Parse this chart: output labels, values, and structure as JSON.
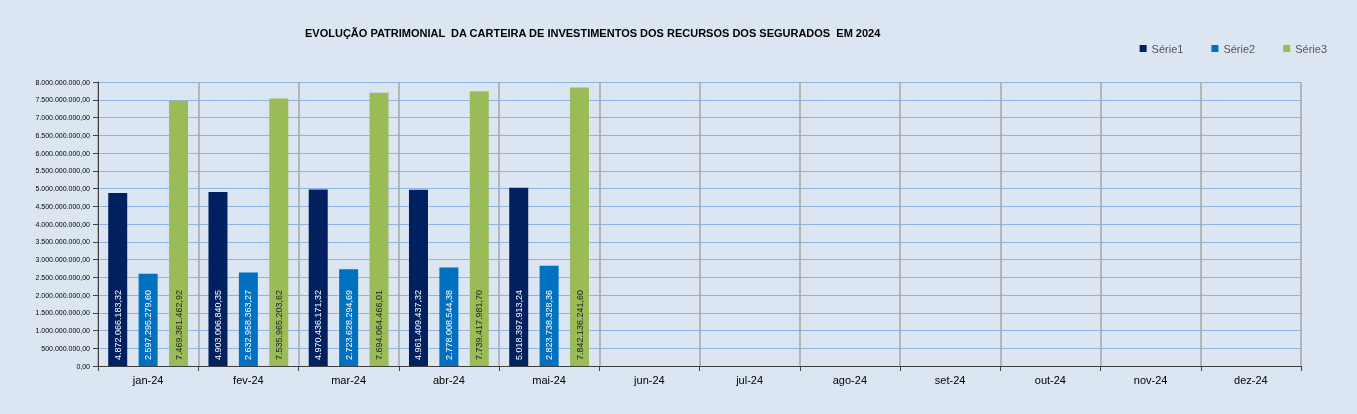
{
  "chart_data": {
    "type": "bar",
    "title": "EVOLUÇÃO PATRIMONIAL  DA CARTEIRA DE INVESTIMENTOS DOS RECURSOS DOS SEGURADOS  EM 2024",
    "categories": [
      "jan-24",
      "fev-24",
      "mar-24",
      "abr-24",
      "mai-24",
      "jun-24",
      "jul-24",
      "ago-24",
      "set-24",
      "out-24",
      "nov-24",
      "dez-24"
    ],
    "series": [
      {
        "name": "Série1",
        "color": "#002060",
        "values": [
          4872066183.32,
          4903006840.35,
          4970436171.32,
          4961409437.32,
          5018397913.24,
          null,
          null,
          null,
          null,
          null,
          null,
          null
        ],
        "value_labels": [
          "4.872.066.183,32",
          "4.903.006.840,35",
          "4.970.436.171,32",
          "4.961.409.437,32",
          "5.018.397.913,24",
          null,
          null,
          null,
          null,
          null,
          null,
          null
        ]
      },
      {
        "name": "Série2",
        "color": "#0070c0",
        "values": [
          2597295279.6,
          2632958363.27,
          2723628294.69,
          2778008544.38,
          2823738328.36,
          null,
          null,
          null,
          null,
          null,
          null,
          null
        ],
        "value_labels": [
          "2.597.295.279,60",
          "2.632.958.363,27",
          "2.723.628.294,69",
          "2.778.008.544,38",
          "2.823.738.328,36",
          null,
          null,
          null,
          null,
          null,
          null,
          null
        ]
      },
      {
        "name": "Série3",
        "color": "#9bbb59",
        "values": [
          7469361462.92,
          7535965203.62,
          7694064466.01,
          7739417981.7,
          7842136241.6,
          null,
          null,
          null,
          null,
          null,
          null,
          null
        ],
        "value_labels": [
          "7.469.361.462,92",
          "7.535.965.203,62",
          "7.694.064.466,01",
          "7.739.417.981,70",
          "7.842.136.241,60",
          null,
          null,
          null,
          null,
          null,
          null,
          null
        ]
      }
    ],
    "ylim": [
      0,
      8000000000
    ],
    "yticks": [
      {
        "value": 0,
        "label": "0,00"
      },
      {
        "value": 500000000,
        "label": "500.000.000,00"
      },
      {
        "value": 1000000000,
        "label": "1.000.000.000,00"
      },
      {
        "value": 1500000000,
        "label": "1.500.000.000,00"
      },
      {
        "value": 2000000000,
        "label": "2.000.000.000,00"
      },
      {
        "value": 2500000000,
        "label": "2.500.000.000,00"
      },
      {
        "value": 3000000000,
        "label": "3.000.000.000,00"
      },
      {
        "value": 3500000000,
        "label": "3.500.000.000,00"
      },
      {
        "value": 4000000000,
        "label": "4.000.000.000,00"
      },
      {
        "value": 4500000000,
        "label": "4.500.000.000,00"
      },
      {
        "value": 5000000000,
        "label": "5.000.000.000,00"
      },
      {
        "value": 5500000000,
        "label": "5.500.000.000,00"
      },
      {
        "value": 6000000000,
        "label": "6.000.000.000,00"
      },
      {
        "value": 6500000000,
        "label": "6.500.000.000,00"
      },
      {
        "value": 7000000000,
        "label": "7.000.000.000,00"
      },
      {
        "value": 7500000000,
        "label": "7.500.000.000,00"
      },
      {
        "value": 8000000000,
        "label": "8.000.000.000,00"
      }
    ],
    "grid": true,
    "legend": "top right"
  }
}
